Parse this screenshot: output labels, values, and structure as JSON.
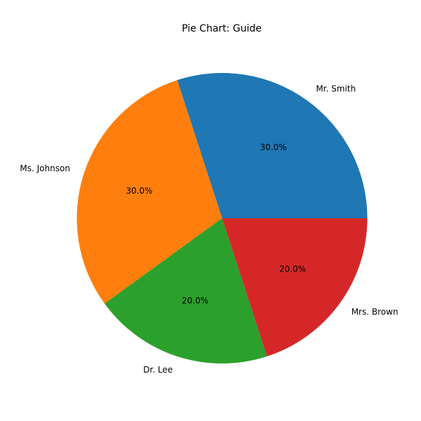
{
  "chart_data": {
    "type": "pie",
    "title": "Pie Chart: Guide",
    "categories": [
      "Mr. Smith",
      "Ms. Johnson",
      "Dr. Lee",
      "Mrs. Brown"
    ],
    "values": [
      30,
      30,
      20,
      20
    ],
    "percent_labels": [
      "30.0%",
      "30.0%",
      "20.0%",
      "20.0%"
    ],
    "colors": [
      "#1f77b4",
      "#ff7f0e",
      "#2ca02c",
      "#d62728"
    ],
    "start_angle_deg": 0,
    "direction": "counterclockwise",
    "legend": "none"
  }
}
